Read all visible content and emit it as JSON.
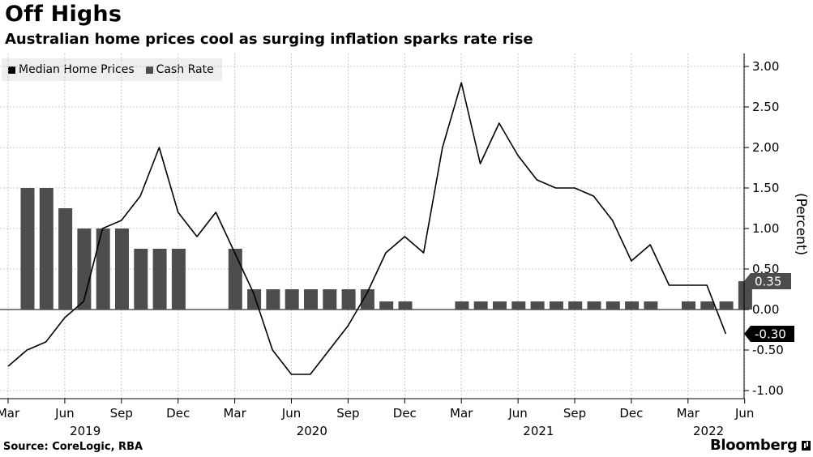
{
  "header": {
    "title": "Off Highs",
    "subtitle": "Australian home prices cool as surging inflation sparks rate rise"
  },
  "footer": {
    "source": "Source: CoreLogic, RBA",
    "brand": "Bloomberg"
  },
  "colors": {
    "line": "#000000",
    "bar": "#4d4d4d",
    "grid": "#c8c8c8",
    "badge_pos": "#4d4d4d",
    "badge_neg": "#000000"
  },
  "chart_data": {
    "type": "bar+line",
    "title": "Off Highs",
    "subtitle": "Australian home prices cool as surging inflation sparks rate rise",
    "ylabel": "(Percent)",
    "ylim": [
      -1.0,
      3.0
    ],
    "y_ticks": [
      3.0,
      2.5,
      2.0,
      1.5,
      1.0,
      0.5,
      0.0,
      -0.5,
      -1.0
    ],
    "y_tick_labels": [
      "3.00",
      "2.50",
      "2.00",
      "1.50",
      "1.00",
      "0.50",
      "0.00",
      "-0.50",
      "-1.00"
    ],
    "y_axis_side": "right",
    "grid": true,
    "legend": "top-left",
    "x_tick_labels": [
      "Mar",
      "Jun",
      "Sep",
      "Dec",
      "Mar",
      "Jun",
      "Sep",
      "Dec",
      "Mar",
      "Jun",
      "Sep",
      "Dec",
      "Mar",
      "Jun"
    ],
    "x_tick_months": [
      "2019-03",
      "2019-06",
      "2019-09",
      "2019-12",
      "2020-03",
      "2020-06",
      "2020-09",
      "2020-12",
      "2021-03",
      "2021-06",
      "2021-09",
      "2021-12",
      "2022-03",
      "2022-06"
    ],
    "year_labels": [
      {
        "label": "2019",
        "month": "2019-07"
      },
      {
        "label": "2020",
        "month": "2020-07"
      },
      {
        "label": "2021",
        "month": "2021-07"
      },
      {
        "label": "2022",
        "month": "2022-04"
      }
    ],
    "months": [
      "2019-03",
      "2019-04",
      "2019-05",
      "2019-06",
      "2019-07",
      "2019-08",
      "2019-09",
      "2019-10",
      "2019-11",
      "2019-12",
      "2020-01",
      "2020-02",
      "2020-03",
      "2020-04",
      "2020-05",
      "2020-06",
      "2020-07",
      "2020-08",
      "2020-09",
      "2020-10",
      "2020-11",
      "2020-12",
      "2021-01",
      "2021-02",
      "2021-03",
      "2021-04",
      "2021-05",
      "2021-06",
      "2021-07",
      "2021-08",
      "2021-09",
      "2021-10",
      "2021-11",
      "2021-12",
      "2022-01",
      "2022-02",
      "2022-03",
      "2022-04",
      "2022-05"
    ],
    "series": [
      {
        "name": "Median Home Prices",
        "kind": "line",
        "values": [
          -0.7,
          -0.5,
          -0.4,
          -0.1,
          0.1,
          1.0,
          1.1,
          1.4,
          2.0,
          1.2,
          0.9,
          1.2,
          0.7,
          0.2,
          -0.5,
          -0.8,
          -0.8,
          -0.5,
          -0.2,
          0.2,
          0.7,
          0.9,
          0.7,
          2.0,
          2.8,
          1.8,
          2.3,
          1.9,
          1.6,
          1.5,
          1.5,
          1.4,
          1.1,
          0.6,
          0.8,
          0.3,
          0.3,
          0.3,
          -0.3
        ]
      },
      {
        "name": "Cash Rate",
        "kind": "bar",
        "values": [
          1.5,
          1.5,
          1.25,
          1.0,
          1.0,
          1.0,
          0.75,
          0.75,
          0.75,
          null,
          null,
          0.75,
          0.25,
          0.25,
          0.25,
          0.25,
          0.25,
          0.25,
          0.25,
          0.1,
          0.1,
          null,
          null,
          0.1,
          0.1,
          0.1,
          0.1,
          0.1,
          0.1,
          0.1,
          0.1,
          0.1,
          0.1,
          0.1,
          null,
          0.1,
          0.1,
          0.1,
          0.35
        ]
      }
    ],
    "end_labels": [
      {
        "series": "Cash Rate",
        "value": 0.35,
        "text": "0.35"
      },
      {
        "series": "Median Home Prices",
        "value": -0.3,
        "text": "-0.30"
      }
    ]
  }
}
